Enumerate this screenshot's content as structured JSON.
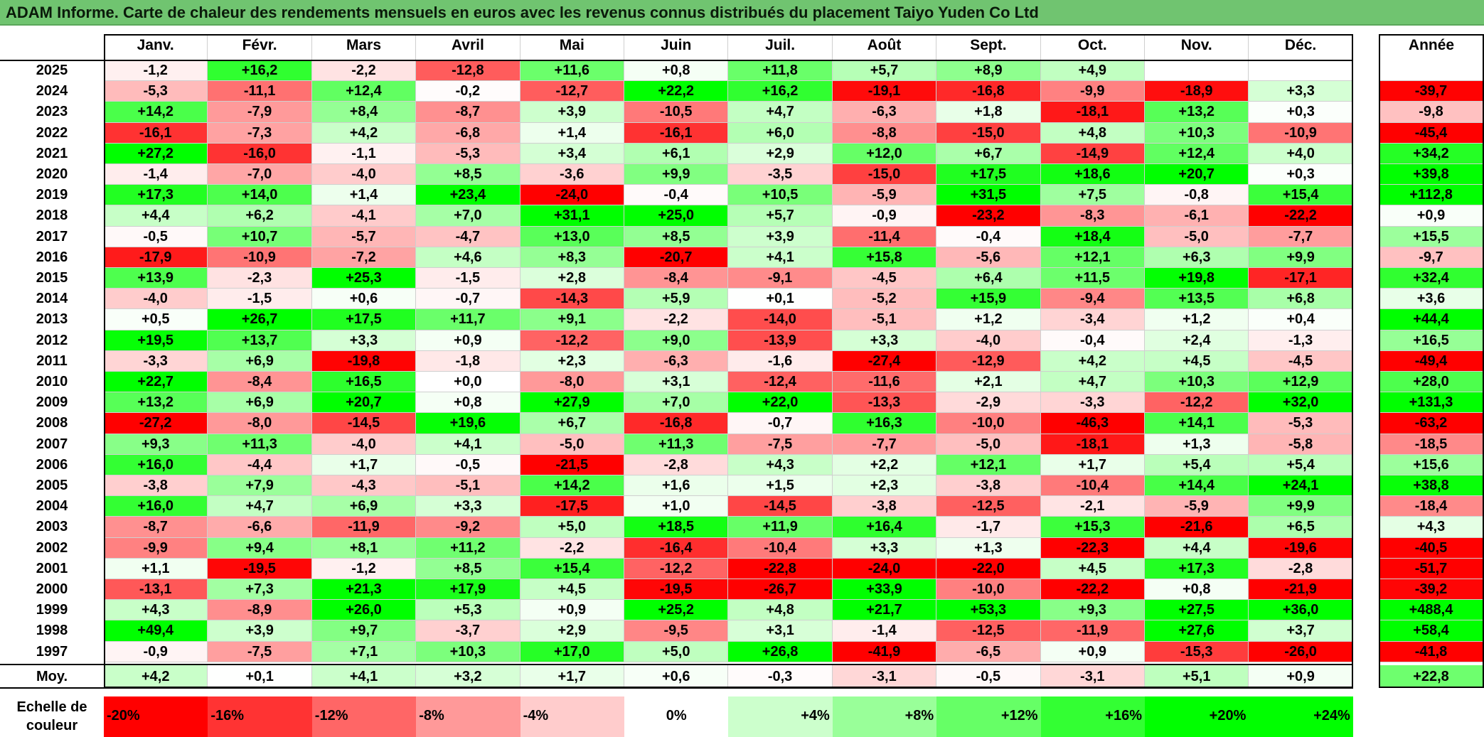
{
  "title": "ADAM Informe. Carte de chaleur des rendements mensuels en euros avec les revenus connus distribués du placement Taiyo Yuden Co Ltd",
  "colors": {
    "title_bar": "#70c470",
    "negative_max": "#ff0000",
    "neutral": "#ffffff",
    "positive_max": "#00ff00"
  },
  "chart_data": {
    "type": "heatmap",
    "months": [
      "Janv.",
      "Févr.",
      "Mars",
      "Avril",
      "Mai",
      "Juin",
      "Juil.",
      "Août",
      "Sept.",
      "Oct.",
      "Nov.",
      "Déc."
    ],
    "year_header": "Année",
    "rows": [
      {
        "year": "2025",
        "values": [
          "-1,2",
          "+16,2",
          "-2,2",
          "-12,8",
          "+11,6",
          "+0,8",
          "+11,8",
          "+5,7",
          "+8,9",
          "+4,9",
          "",
          ""
        ],
        "annual": ""
      },
      {
        "year": "2024",
        "values": [
          "-5,3",
          "-11,1",
          "+12,4",
          "-0,2",
          "-12,7",
          "+22,2",
          "+16,2",
          "-19,1",
          "-16,8",
          "-9,9",
          "-18,9",
          "+3,3"
        ],
        "annual": "-39,7"
      },
      {
        "year": "2023",
        "values": [
          "+14,2",
          "-7,9",
          "+8,4",
          "-8,7",
          "+3,9",
          "-10,5",
          "+4,7",
          "-6,3",
          "+1,8",
          "-18,1",
          "+13,2",
          "+0,3"
        ],
        "annual": "-9,8"
      },
      {
        "year": "2022",
        "values": [
          "-16,1",
          "-7,3",
          "+4,2",
          "-6,8",
          "+1,4",
          "-16,1",
          "+6,0",
          "-8,8",
          "-15,0",
          "+4,8",
          "+10,3",
          "-10,9"
        ],
        "annual": "-45,4"
      },
      {
        "year": "2021",
        "values": [
          "+27,2",
          "-16,0",
          "-1,1",
          "-5,3",
          "+3,4",
          "+6,1",
          "+2,9",
          "+12,0",
          "+6,7",
          "-14,9",
          "+12,4",
          "+4,0"
        ],
        "annual": "+34,2"
      },
      {
        "year": "2020",
        "values": [
          "-1,4",
          "-7,0",
          "-4,0",
          "+8,5",
          "-3,6",
          "+9,9",
          "-3,5",
          "-15,0",
          "+17,5",
          "+18,6",
          "+20,7",
          "+0,3"
        ],
        "annual": "+39,8"
      },
      {
        "year": "2019",
        "values": [
          "+17,3",
          "+14,0",
          "+1,4",
          "+23,4",
          "-24,0",
          "-0,4",
          "+10,5",
          "-5,9",
          "+31,5",
          "+7,5",
          "-0,8",
          "+15,4"
        ],
        "annual": "+112,8"
      },
      {
        "year": "2018",
        "values": [
          "+4,4",
          "+6,2",
          "-4,1",
          "+7,0",
          "+31,1",
          "+25,0",
          "+5,7",
          "-0,9",
          "-23,2",
          "-8,3",
          "-6,1",
          "-22,2"
        ],
        "annual": "+0,9"
      },
      {
        "year": "2017",
        "values": [
          "-0,5",
          "+10,7",
          "-5,7",
          "-4,7",
          "+13,0",
          "+8,5",
          "+3,9",
          "-11,4",
          "-0,4",
          "+18,4",
          "-5,0",
          "-7,7"
        ],
        "annual": "+15,5"
      },
      {
        "year": "2016",
        "values": [
          "-17,9",
          "-10,9",
          "-7,2",
          "+4,6",
          "+8,3",
          "-20,7",
          "+4,1",
          "+15,8",
          "-5,6",
          "+12,1",
          "+6,3",
          "+9,9"
        ],
        "annual": "-9,7"
      },
      {
        "year": "2015",
        "values": [
          "+13,9",
          "-2,3",
          "+25,3",
          "-1,5",
          "+2,8",
          "-8,4",
          "-9,1",
          "-4,5",
          "+6,4",
          "+11,5",
          "+19,8",
          "-17,1"
        ],
        "annual": "+32,4"
      },
      {
        "year": "2014",
        "values": [
          "-4,0",
          "-1,5",
          "+0,6",
          "-0,7",
          "-14,3",
          "+5,9",
          "+0,1",
          "-5,2",
          "+15,9",
          "-9,4",
          "+13,5",
          "+6,8"
        ],
        "annual": "+3,6"
      },
      {
        "year": "2013",
        "values": [
          "+0,5",
          "+26,7",
          "+17,5",
          "+11,7",
          "+9,1",
          "-2,2",
          "-14,0",
          "-5,1",
          "+1,2",
          "-3,4",
          "+1,2",
          "+0,4"
        ],
        "annual": "+44,4"
      },
      {
        "year": "2012",
        "values": [
          "+19,5",
          "+13,7",
          "+3,3",
          "+0,9",
          "-12,2",
          "+9,0",
          "-13,9",
          "+3,3",
          "-4,0",
          "-0,4",
          "+2,4",
          "-1,3"
        ],
        "annual": "+16,5"
      },
      {
        "year": "2011",
        "values": [
          "-3,3",
          "+6,9",
          "-19,8",
          "-1,8",
          "+2,3",
          "-6,3",
          "-1,6",
          "-27,4",
          "-12,9",
          "+4,2",
          "+4,5",
          "-4,5"
        ],
        "annual": "-49,4"
      },
      {
        "year": "2010",
        "values": [
          "+22,7",
          "-8,4",
          "+16,5",
          "+0,0",
          "-8,0",
          "+3,1",
          "-12,4",
          "-11,6",
          "+2,1",
          "+4,7",
          "+10,3",
          "+12,9"
        ],
        "annual": "+28,0"
      },
      {
        "year": "2009",
        "values": [
          "+13,2",
          "+6,9",
          "+20,7",
          "+0,8",
          "+27,9",
          "+7,0",
          "+22,0",
          "-13,3",
          "-2,9",
          "-3,3",
          "-12,2",
          "+32,0"
        ],
        "annual": "+131,3"
      },
      {
        "year": "2008",
        "values": [
          "-27,2",
          "-8,0",
          "-14,5",
          "+19,6",
          "+6,7",
          "-16,8",
          "-0,7",
          "+16,3",
          "-10,0",
          "-46,3",
          "+14,1",
          "-5,3"
        ],
        "annual": "-63,2"
      },
      {
        "year": "2007",
        "values": [
          "+9,3",
          "+11,3",
          "-4,0",
          "+4,1",
          "-5,0",
          "+11,3",
          "-7,5",
          "-7,7",
          "-5,0",
          "-18,1",
          "+1,3",
          "-5,8"
        ],
        "annual": "-18,5"
      },
      {
        "year": "2006",
        "values": [
          "+16,0",
          "-4,4",
          "+1,7",
          "-0,5",
          "-21,5",
          "-2,8",
          "+4,3",
          "+2,2",
          "+12,1",
          "+1,7",
          "+5,4",
          "+5,4"
        ],
        "annual": "+15,6"
      },
      {
        "year": "2005",
        "values": [
          "-3,8",
          "+7,9",
          "-4,3",
          "-5,1",
          "+14,2",
          "+1,6",
          "+1,5",
          "+2,3",
          "-3,8",
          "-10,4",
          "+14,4",
          "+24,1"
        ],
        "annual": "+38,8"
      },
      {
        "year": "2004",
        "values": [
          "+16,0",
          "+4,7",
          "+6,9",
          "+3,3",
          "-17,5",
          "+1,0",
          "-14,5",
          "-3,8",
          "-12,5",
          "-2,1",
          "-5,9",
          "+9,9"
        ],
        "annual": "-18,4"
      },
      {
        "year": "2003",
        "values": [
          "-8,7",
          "-6,6",
          "-11,9",
          "-9,2",
          "+5,0",
          "+18,5",
          "+11,9",
          "+16,4",
          "-1,7",
          "+15,3",
          "-21,6",
          "+6,5"
        ],
        "annual": "+4,3"
      },
      {
        "year": "2002",
        "values": [
          "-9,9",
          "+9,4",
          "+8,1",
          "+11,2",
          "-2,2",
          "-16,4",
          "-10,4",
          "+3,3",
          "+1,3",
          "-22,3",
          "+4,4",
          "-19,6"
        ],
        "annual": "-40,5"
      },
      {
        "year": "2001",
        "values": [
          "+1,1",
          "-19,5",
          "-1,2",
          "+8,5",
          "+15,4",
          "-12,2",
          "-22,8",
          "-24,0",
          "-22,0",
          "+4,5",
          "+17,3",
          "-2,8"
        ],
        "annual": "-51,7"
      },
      {
        "year": "2000",
        "values": [
          "-13,1",
          "+7,3",
          "+21,3",
          "+17,9",
          "+4,5",
          "-19,5",
          "-26,7",
          "+33,9",
          "-10,0",
          "-22,2",
          "+0,8",
          "-21,9"
        ],
        "annual": "-39,2"
      },
      {
        "year": "1999",
        "values": [
          "+4,3",
          "-8,9",
          "+26,0",
          "+5,3",
          "+0,9",
          "+25,2",
          "+4,8",
          "+21,7",
          "+53,3",
          "+9,3",
          "+27,5",
          "+36,0"
        ],
        "annual": "+488,4"
      },
      {
        "year": "1998",
        "values": [
          "+49,4",
          "+3,9",
          "+9,7",
          "-3,7",
          "+2,9",
          "-9,5",
          "+3,1",
          "-1,4",
          "-12,5",
          "-11,9",
          "+27,6",
          "+3,7"
        ],
        "annual": "+58,4"
      },
      {
        "year": "1997",
        "values": [
          "-0,9",
          "-7,5",
          "+7,1",
          "+10,3",
          "+17,0",
          "+5,0",
          "+26,8",
          "-41,9",
          "-6,5",
          "+0,9",
          "-15,3",
          "-26,0"
        ],
        "annual": "-41,8"
      }
    ],
    "average": {
      "label": "Moy.",
      "values": [
        "+4,2",
        "+0,1",
        "+4,1",
        "+3,2",
        "+1,7",
        "+0,6",
        "-0,3",
        "-3,1",
        "-0,5",
        "-3,1",
        "+5,1",
        "+0,9"
      ],
      "annual": "+22,8"
    },
    "color_scale": {
      "label": "Echelle de couleur",
      "stops": [
        "-20%",
        "-16%",
        "-12%",
        "-8%",
        "-4%",
        "0%",
        "+4%",
        "+8%",
        "+12%",
        "+16%",
        "+20%",
        "+24%"
      ],
      "range": [
        -20,
        24
      ]
    }
  }
}
